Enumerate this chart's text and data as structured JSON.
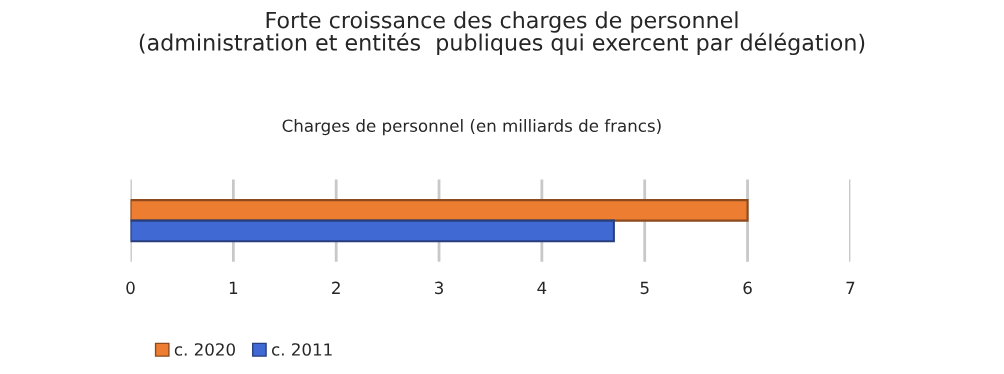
{
  "chart_data": {
    "type": "bar",
    "orientation": "horizontal",
    "title": "Forte croissance des charges de personnel\n(administration et entités  publiques qui exercent par délégation)",
    "subtitle": "Charges de personnel (en milliards de francs)",
    "categories": [
      null
    ],
    "series": [
      {
        "name": "c. 2020",
        "color": "#ed7d31",
        "values": [
          6.0
        ]
      },
      {
        "name": "c. 2011",
        "color": "#4169d4",
        "values": [
          4.7
        ]
      }
    ],
    "xlim": [
      0,
      7
    ],
    "xticks": [
      0,
      1,
      2,
      3,
      4,
      5,
      6,
      7
    ],
    "grid": "x",
    "legend": "bottom left"
  }
}
